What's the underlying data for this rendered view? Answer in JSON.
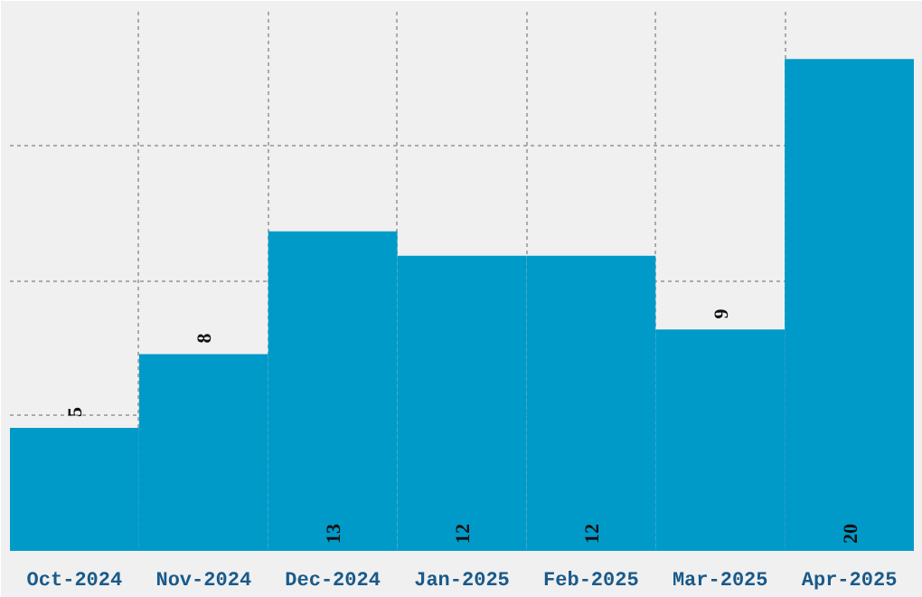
{
  "chart_data": {
    "type": "bar",
    "categories": [
      "Oct-2024",
      "Nov-2024",
      "Dec-2024",
      "Jan-2025",
      "Feb-2025",
      "Mar-2025",
      "Apr-2025"
    ],
    "values": [
      5,
      8,
      13,
      12,
      12,
      9,
      20
    ],
    "color": "#009ac9",
    "data_labels": true,
    "grid": true,
    "tick_labels": "x",
    "ylim": [
      0,
      22
    ],
    "yticks": [
      {
        "value": 5.5,
        "label": null
      },
      {
        "value": 11,
        "label": null
      },
      {
        "value": 16.5,
        "label": null
      }
    ]
  }
}
